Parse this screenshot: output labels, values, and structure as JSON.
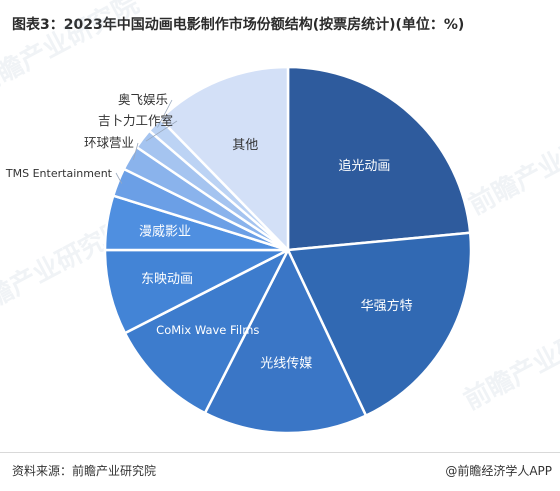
{
  "header": {
    "title": "图表3：2023年中国动画电影制作市场份额结构(按票房统计)(单位：%)"
  },
  "footer": {
    "source": "资料来源：前瞻产业研究院",
    "app": "@前瞻经济学人APP"
  },
  "watermark": "前瞻产业研究院",
  "chart_data": {
    "type": "pie",
    "title": "图表3：2023年中国动画电影制作市场份额结构(按票房统计)(单位：%)",
    "unit": "%",
    "start": "12 o'clock, clockwise",
    "slices": [
      {
        "label": "追光动画",
        "value": 23.5,
        "color": "#2e5b9d",
        "label_position": "inside"
      },
      {
        "label": "华强方特",
        "value": 19.5,
        "color": "#3169b3",
        "label_position": "inside"
      },
      {
        "label": "光线传媒",
        "value": 14.5,
        "color": "#3a76c6",
        "label_position": "inside"
      },
      {
        "label": "CoMix Wave Films",
        "value": 10.0,
        "color": "#3d7ccd",
        "label_position": "inside"
      },
      {
        "label": "东映动画",
        "value": 7.5,
        "color": "#4384d6",
        "label_position": "inside"
      },
      {
        "label": "漫威影业",
        "value": 4.8,
        "color": "#4f8fe0",
        "label_position": "inside"
      },
      {
        "label": "TMS Entertainment",
        "value": 2.5,
        "color": "#6b9fe6",
        "label_position": "outside"
      },
      {
        "label": "环球营业",
        "value": 2.2,
        "color": "#8ab3ec",
        "label_position": "outside"
      },
      {
        "label": "吉卜力工作室",
        "value": 1.8,
        "color": "#a5c4f0",
        "label_position": "outside"
      },
      {
        "label": "奥飞娱乐",
        "value": 1.4,
        "color": "#bcd3f4",
        "label_position": "outside"
      },
      {
        "label": "其他",
        "value": 12.3,
        "color": "#d3e0f7",
        "label_position": "inside"
      }
    ]
  }
}
